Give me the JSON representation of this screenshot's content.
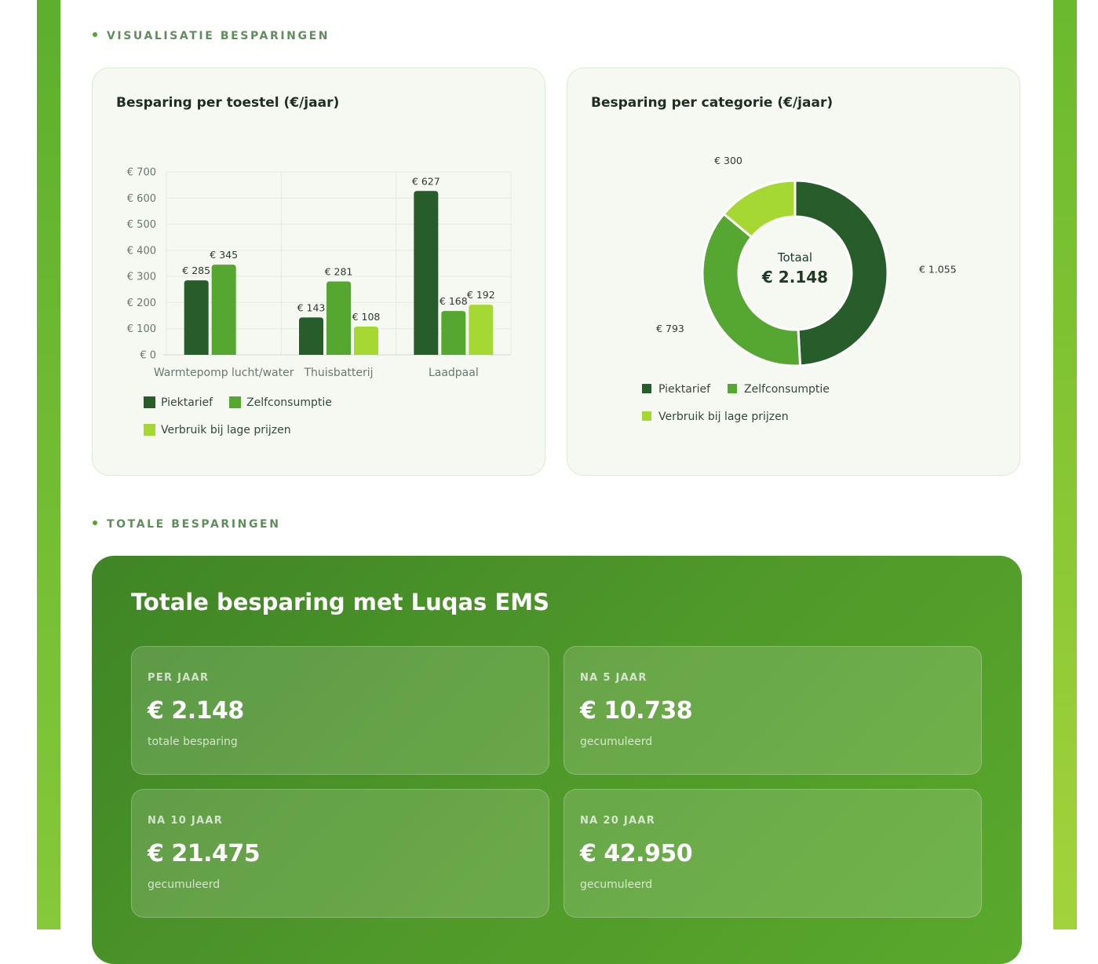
{
  "sections": {
    "visualisatie_label": "VISUALISATIE BESPARINGEN",
    "totale_label": "TOTALE BESPARINGEN"
  },
  "colors": {
    "piektarief": "#275d2b",
    "zelfconsumptie": "#55a731",
    "verbruik": "#a5d832",
    "accent": "#4fa62a"
  },
  "chart_data": [
    {
      "type": "bar",
      "title": "Besparing per toestel (€/jaar)",
      "categories": [
        "Warmtepomp lucht/water",
        "Thuisbatterij",
        "Laadpaal"
      ],
      "series": [
        {
          "name": "Piektarief",
          "values": [
            285,
            143,
            627
          ],
          "labels": [
            "€ 285",
            "€ 143",
            "€ 627"
          ]
        },
        {
          "name": "Zelfconsumptie",
          "values": [
            345,
            281,
            168
          ],
          "labels": [
            "€ 345",
            "€ 281",
            "€ 168"
          ]
        },
        {
          "name": "Verbruik bij lage prijzen",
          "values": [
            null,
            108,
            192
          ],
          "labels": [
            null,
            "€ 108",
            "€ 192"
          ]
        }
      ],
      "yticks": [
        0,
        100,
        200,
        300,
        400,
        500,
        600,
        700
      ],
      "ytick_labels": [
        "€ 0",
        "€ 100",
        "€ 200",
        "€ 300",
        "€ 400",
        "€ 500",
        "€ 600",
        "€ 700"
      ],
      "ylim": [
        0,
        700
      ],
      "grid": true,
      "legend_position": "bottom-left"
    },
    {
      "type": "pie",
      "title": "Besparing per categorie (€/jaar)",
      "center_label": "Totaal",
      "center_value": "€ 2.148",
      "slices": [
        {
          "name": "Piektarief",
          "value": 1055,
          "label": "€ 1.055"
        },
        {
          "name": "Zelfconsumptie",
          "value": 793,
          "label": "€ 793"
        },
        {
          "name": "Verbruik bij lage prijzen",
          "value": 300,
          "label": "€ 300"
        }
      ],
      "legend_position": "bottom-left"
    }
  ],
  "totals": {
    "title": "Totale besparing met Luqas EMS",
    "tiles": [
      {
        "label": "PER JAAR",
        "value": "€ 2.148",
        "sub": "totale besparing"
      },
      {
        "label": "NA 5 JAAR",
        "value": "€ 10.738",
        "sub": "gecumuleerd"
      },
      {
        "label": "NA 10 JAAR",
        "value": "€ 21.475",
        "sub": "gecumuleerd"
      },
      {
        "label": "NA 20 JAAR",
        "value": "€ 42.950",
        "sub": "gecumuleerd"
      }
    ]
  }
}
